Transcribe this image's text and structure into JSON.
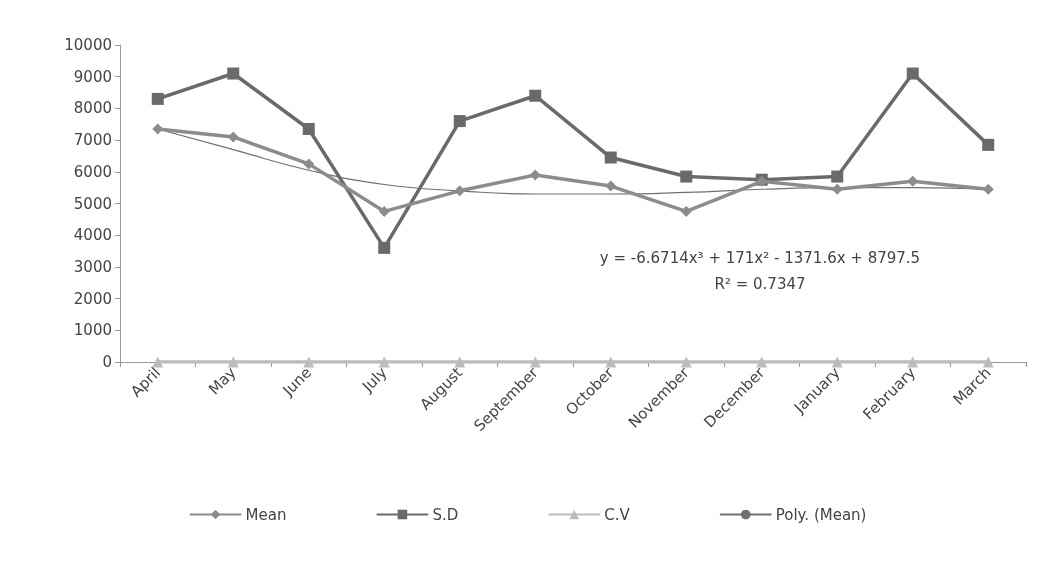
{
  "chart_data": {
    "type": "line",
    "categories": [
      "April",
      "May",
      "June",
      "July",
      "August",
      "September",
      "October",
      "November",
      "December",
      "January",
      "February",
      "March"
    ],
    "series": [
      {
        "name": "Mean",
        "color": "#8c8c8c",
        "marker": "diamond",
        "values": [
          7350,
          7100,
          6250,
          4750,
          5400,
          5900,
          5550,
          4750,
          5700,
          5450,
          5700,
          5450
        ]
      },
      {
        "name": "S.D",
        "color": "#6a6a6a",
        "marker": "square",
        "values": [
          8300,
          9100,
          7350,
          3600,
          7600,
          8400,
          6450,
          5850,
          5750,
          5850,
          9100,
          6850
        ]
      },
      {
        "name": "C.V",
        "color": "#bcbcbc",
        "marker": "triangle",
        "values": [
          0,
          0,
          0,
          0,
          0,
          0,
          0,
          0,
          0,
          0,
          0,
          0
        ]
      },
      {
        "name": "Poly. (Mean)",
        "color": "#707070",
        "marker": "none",
        "values": [
          7350,
          6700,
          6050,
          5600,
          5400,
          5300,
          5300,
          5350,
          5450,
          5500,
          5500,
          5450
        ]
      }
    ],
    "ylim": [
      0,
      10000
    ],
    "yticks": [
      0,
      1000,
      2000,
      3000,
      4000,
      5000,
      6000,
      7000,
      8000,
      9000,
      10000
    ],
    "grid": false,
    "legend": "bottom",
    "annotations": [
      "y = -6.6714x³ + 171x² - 1371.6x + 8797.5",
      "R² = 0.7347"
    ]
  }
}
